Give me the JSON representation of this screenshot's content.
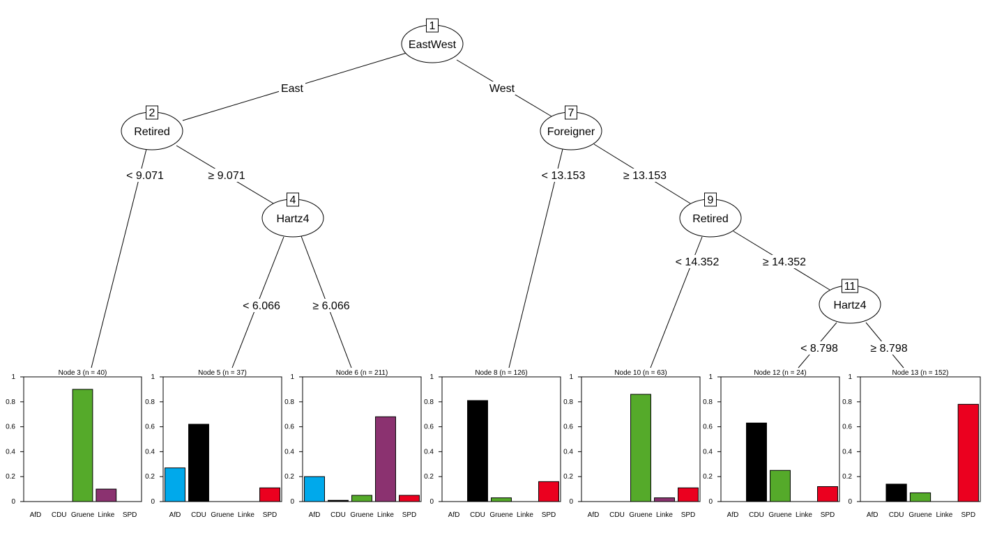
{
  "categories": [
    "AfD",
    "CDU",
    "Gruene",
    "Linke",
    "SPD"
  ],
  "category_colors": [
    "#00A9EB",
    "#000000",
    "#55AA2A",
    "#8B3270",
    "#EB001F"
  ],
  "y_ticks": [
    "0",
    "0.2",
    "0.4",
    "0.6",
    "0.8",
    "1"
  ],
  "inner_nodes": [
    {
      "id": "1",
      "label": "EastWest"
    },
    {
      "id": "2",
      "label": "Retired"
    },
    {
      "id": "4",
      "label": "Hartz4"
    },
    {
      "id": "7",
      "label": "Foreigner"
    },
    {
      "id": "9",
      "label": "Retired"
    },
    {
      "id": "11",
      "label": "Hartz4"
    }
  ],
  "edges": [
    {
      "from": "1",
      "to": "2",
      "label": "East"
    },
    {
      "from": "1",
      "to": "7",
      "label": "West"
    },
    {
      "from": "2",
      "to": "3",
      "label": "< 9.071"
    },
    {
      "from": "2",
      "to": "4",
      "label": "≥ 9.071"
    },
    {
      "from": "4",
      "to": "5",
      "label": "< 6.066"
    },
    {
      "from": "4",
      "to": "6",
      "label": "≥ 6.066"
    },
    {
      "from": "7",
      "to": "8",
      "label": "< 13.153"
    },
    {
      "from": "7",
      "to": "9",
      "label": "≥ 13.153"
    },
    {
      "from": "9",
      "to": "10",
      "label": "< 14.352"
    },
    {
      "from": "9",
      "to": "11",
      "label": "≥ 14.352"
    },
    {
      "from": "11",
      "to": "12",
      "label": "< 8.798"
    },
    {
      "from": "11",
      "to": "13",
      "label": "≥ 8.798"
    }
  ],
  "chart_data": [
    {
      "type": "bar",
      "title": "Node 3 (n = 40)",
      "categories": [
        "AfD",
        "CDU",
        "Gruene",
        "Linke",
        "SPD"
      ],
      "values": [
        0,
        0,
        0.9,
        0.1,
        0
      ],
      "ylim": [
        0,
        1
      ]
    },
    {
      "type": "bar",
      "title": "Node 5 (n = 37)",
      "categories": [
        "AfD",
        "CDU",
        "Gruene",
        "Linke",
        "SPD"
      ],
      "values": [
        0.27,
        0.62,
        0,
        0,
        0.11
      ],
      "ylim": [
        0,
        1
      ]
    },
    {
      "type": "bar",
      "title": "Node 6 (n = 211)",
      "categories": [
        "AfD",
        "CDU",
        "Gruene",
        "Linke",
        "SPD"
      ],
      "values": [
        0.2,
        0.01,
        0.05,
        0.68,
        0.05
      ],
      "ylim": [
        0,
        1
      ]
    },
    {
      "type": "bar",
      "title": "Node 8 (n = 126)",
      "categories": [
        "AfD",
        "CDU",
        "Gruene",
        "Linke",
        "SPD"
      ],
      "values": [
        0,
        0.81,
        0.03,
        0,
        0.16
      ],
      "ylim": [
        0,
        1
      ]
    },
    {
      "type": "bar",
      "title": "Node 10 (n = 63)",
      "categories": [
        "AfD",
        "CDU",
        "Gruene",
        "Linke",
        "SPD"
      ],
      "values": [
        0,
        0,
        0.86,
        0.03,
        0.11
      ],
      "ylim": [
        0,
        1
      ]
    },
    {
      "type": "bar",
      "title": "Node 12 (n = 24)",
      "categories": [
        "AfD",
        "CDU",
        "Gruene",
        "Linke",
        "SPD"
      ],
      "values": [
        0,
        0.63,
        0.25,
        0,
        0.12
      ],
      "ylim": [
        0,
        1
      ]
    },
    {
      "type": "bar",
      "title": "Node 13 (n = 152)",
      "categories": [
        "AfD",
        "CDU",
        "Gruene",
        "Linke",
        "SPD"
      ],
      "values": [
        0,
        0.14,
        0.07,
        0,
        0.78
      ],
      "ylim": [
        0,
        1
      ]
    }
  ]
}
